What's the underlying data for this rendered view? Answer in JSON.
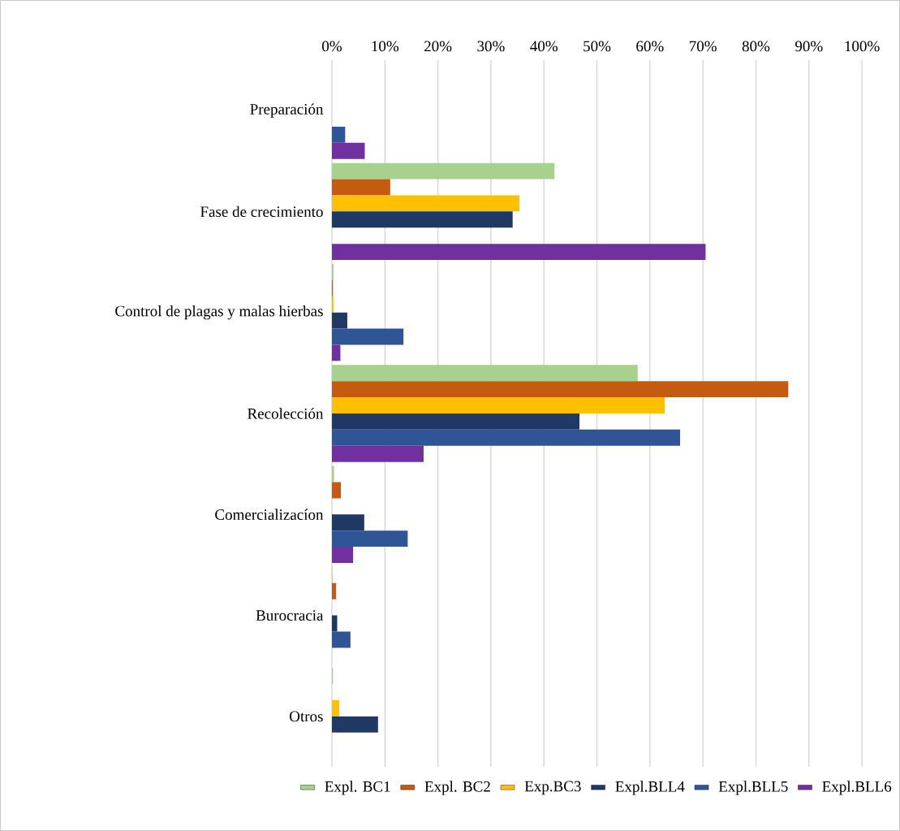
{
  "chart_data": {
    "type": "bar",
    "orientation": "horizontal",
    "categories": [
      "Preparación",
      "Fase de crecimiento",
      "Control de plagas y malas hierbas",
      "Recolección",
      "Comercializacíon",
      "Burocracia",
      "Otros"
    ],
    "series": [
      {
        "name": "Expl. BC1",
        "color": "#a9d18e",
        "values": [
          0,
          42.0,
          0.3,
          57.7,
          0.4,
          0.1,
          0.2
        ]
      },
      {
        "name": "Expl. BC2",
        "color": "#c55a11",
        "values": [
          0,
          11.0,
          0.2,
          86.1,
          1.7,
          0.8,
          0
        ]
      },
      {
        "name": "Exp.BC3",
        "color": "#ffc000",
        "values": [
          0,
          35.4,
          0.3,
          62.8,
          0,
          0,
          1.4
        ]
      },
      {
        "name": "Expl.BLL4",
        "color": "#203864",
        "values": [
          0,
          34.1,
          2.9,
          46.7,
          6.1,
          1.0,
          8.7
        ]
      },
      {
        "name": "Expl.BLL5",
        "color": "#2f5597",
        "values": [
          2.5,
          0,
          13.5,
          65.7,
          14.3,
          3.5,
          0
        ]
      },
      {
        "name": "Expl.BLL6",
        "color": "#7030a0",
        "values": [
          6.2,
          70.5,
          1.6,
          17.3,
          4.0,
          0,
          0
        ]
      }
    ],
    "xlim": [
      0,
      100
    ],
    "xticks": [
      {
        "value": 0,
        "label": "0%"
      },
      {
        "value": 10,
        "label": "10%"
      },
      {
        "value": 20,
        "label": "20%"
      },
      {
        "value": 30,
        "label": "30%"
      },
      {
        "value": 40,
        "label": "40%"
      },
      {
        "value": 50,
        "label": "50%"
      },
      {
        "value": 60,
        "label": "60%"
      },
      {
        "value": 70,
        "label": "70%"
      },
      {
        "value": 80,
        "label": "80%"
      },
      {
        "value": 90,
        "label": "90%"
      },
      {
        "value": 100,
        "label": "100%"
      }
    ],
    "grid": "x",
    "legend": "bottom"
  }
}
